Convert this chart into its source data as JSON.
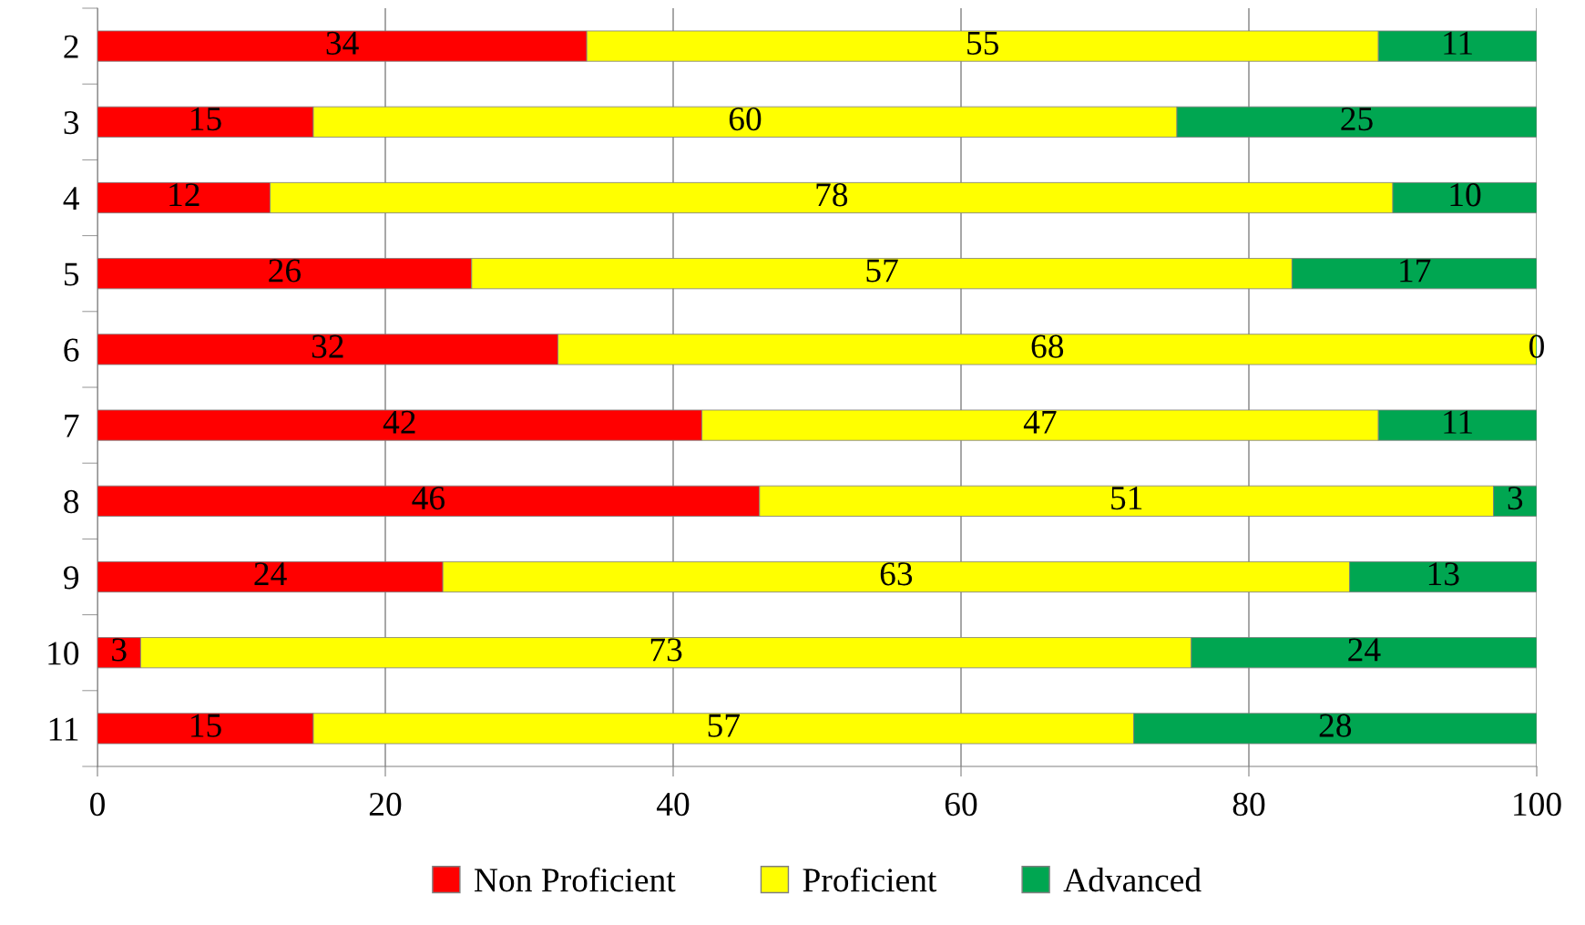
{
  "chart_data": {
    "type": "bar",
    "orientation": "horizontal",
    "stacked": true,
    "categories": [
      "2",
      "3",
      "4",
      "5",
      "6",
      "7",
      "8",
      "9",
      "10",
      "11"
    ],
    "series": [
      {
        "name": "Non Proficient",
        "color": "#ff0000",
        "values": [
          34,
          15,
          12,
          26,
          32,
          42,
          46,
          24,
          3,
          15
        ]
      },
      {
        "name": "Proficient",
        "color": "#ffff00",
        "values": [
          55,
          60,
          78,
          57,
          68,
          47,
          51,
          63,
          73,
          57
        ]
      },
      {
        "name": "Advanced",
        "color": "#00a651",
        "values": [
          11,
          25,
          10,
          17,
          0,
          11,
          3,
          13,
          24,
          28
        ]
      }
    ],
    "xlim": [
      0,
      100
    ],
    "xticks": [
      0,
      20,
      40,
      60,
      80,
      100
    ],
    "grid": "x",
    "legend": "bottom",
    "data_labels": true
  }
}
